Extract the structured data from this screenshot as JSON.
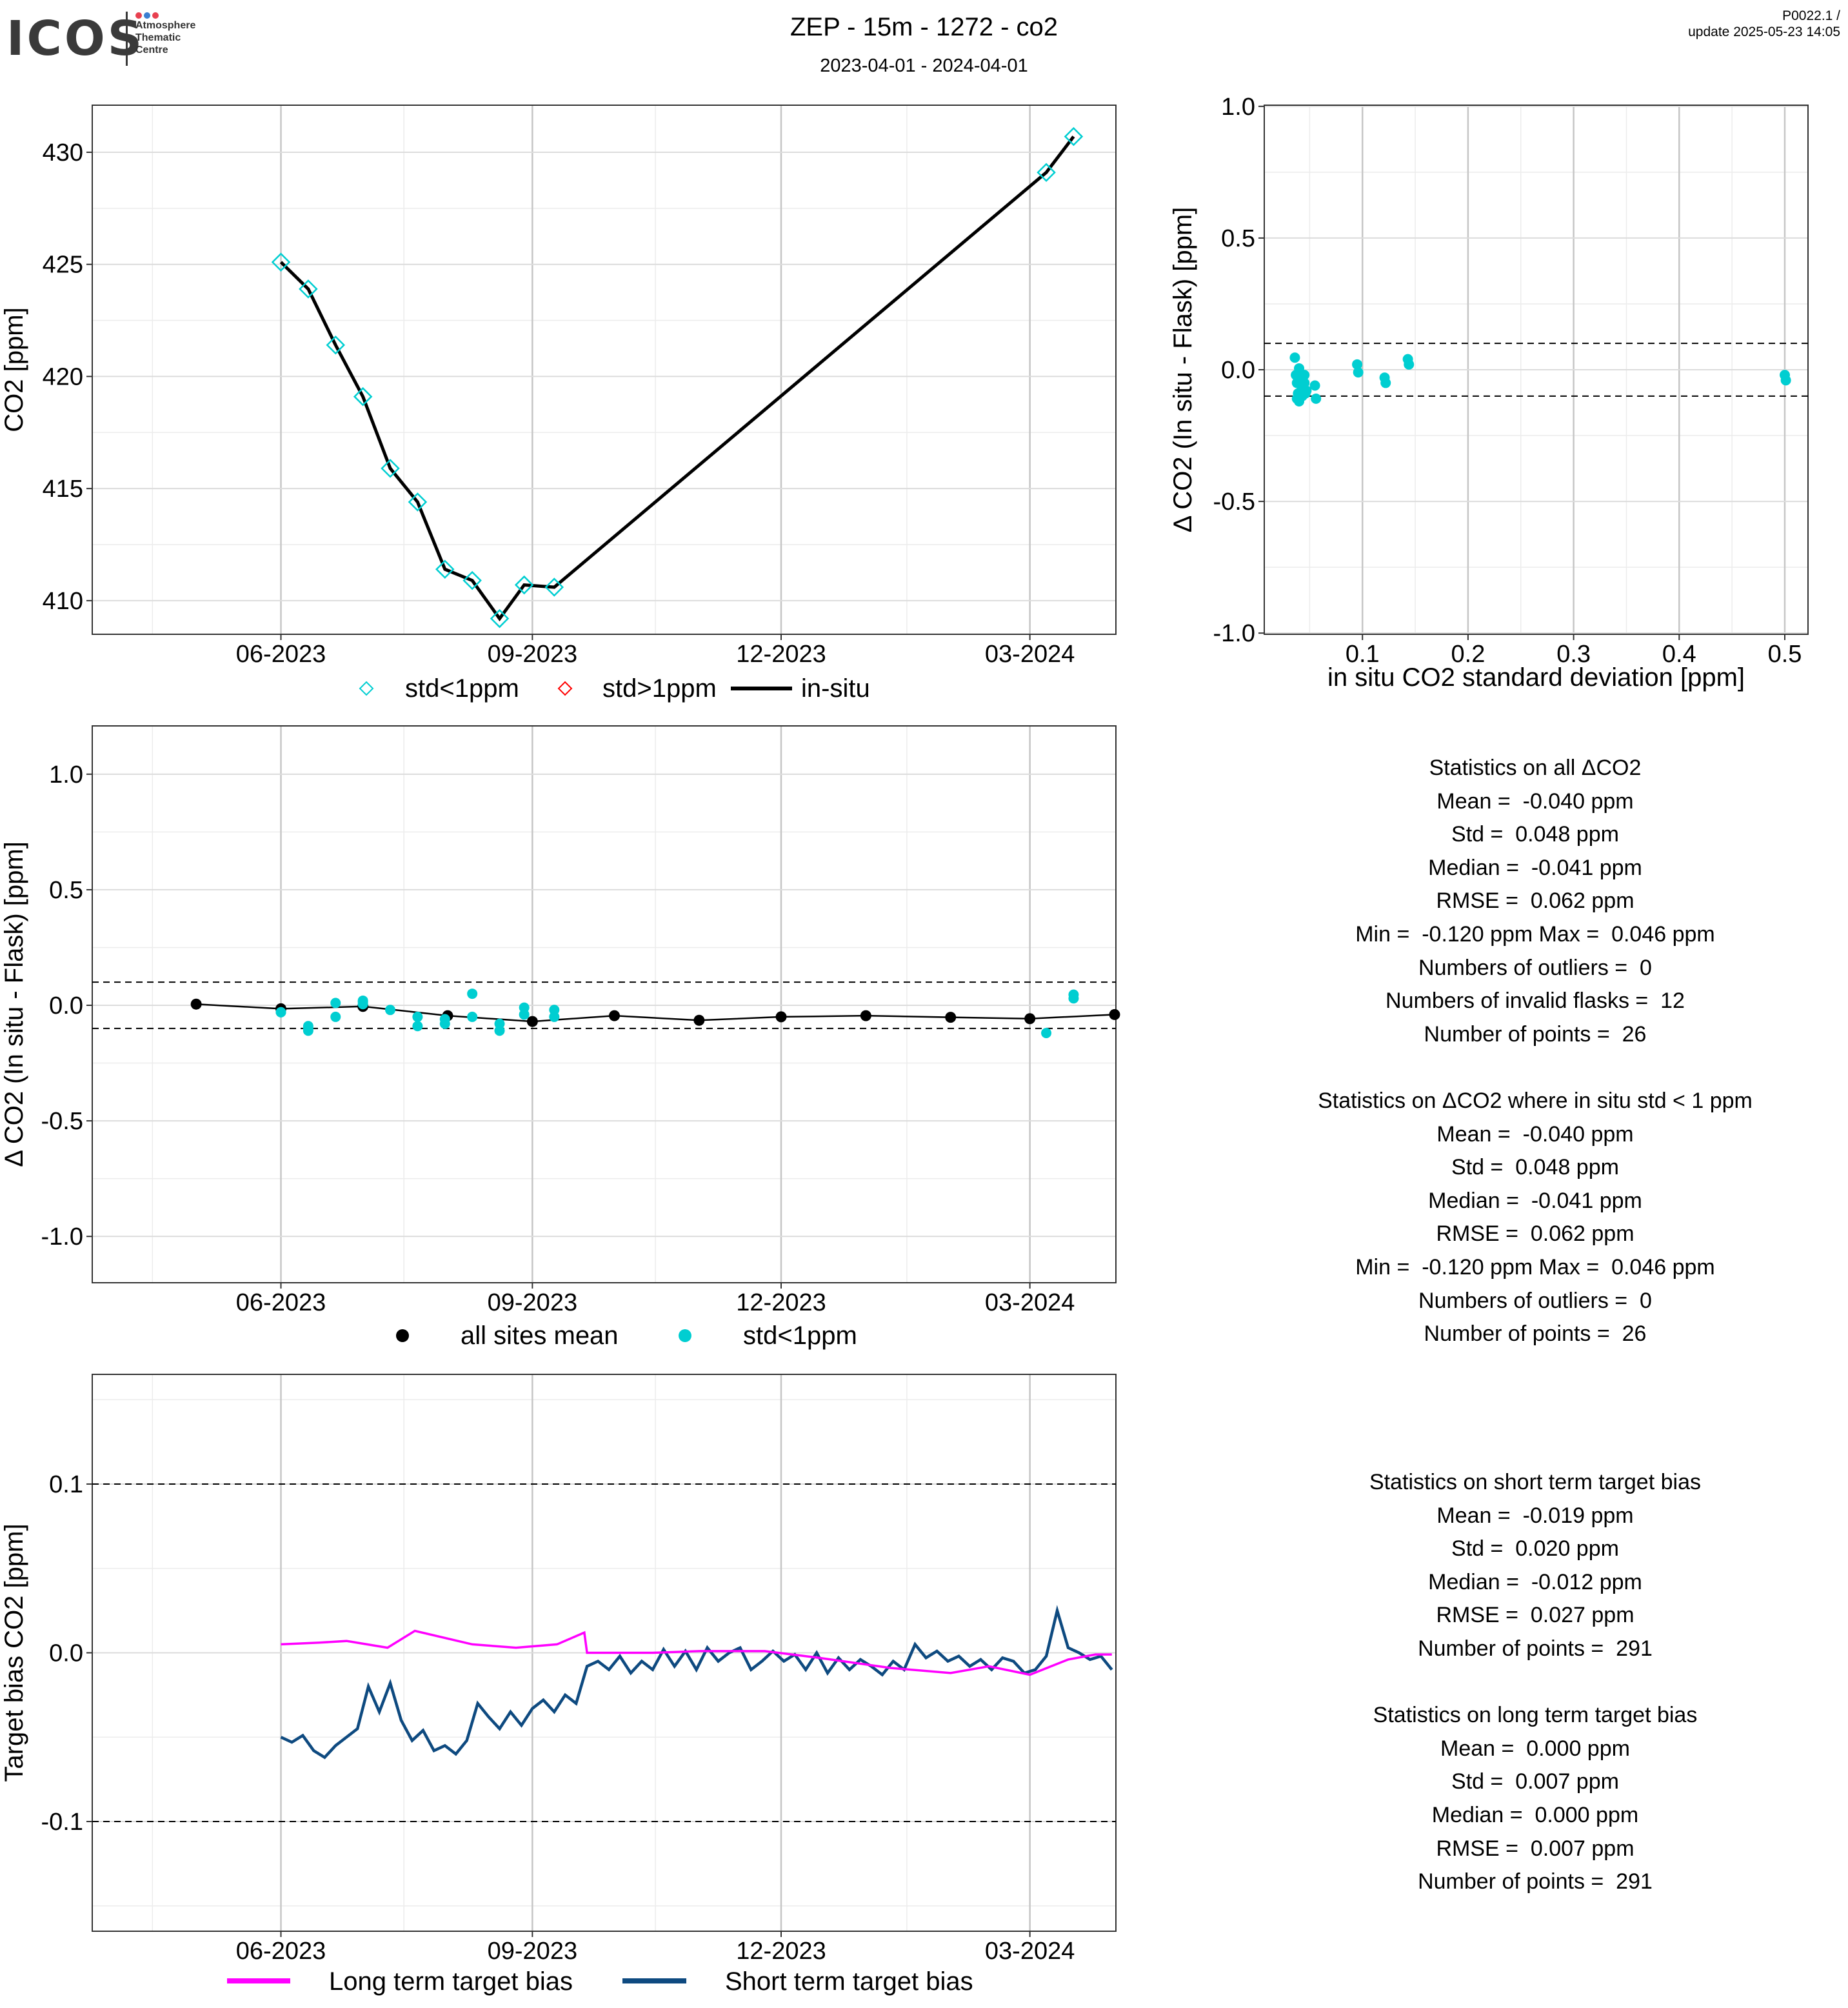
{
  "header": {
    "logo_text": "ICOS",
    "logo_subtext": [
      "Atmosphere",
      "Thematic",
      "Centre"
    ],
    "title": "ZEP - 15m - 1272 - co2",
    "subtitle": "2023-04-01 - 2024-04-01",
    "version": "P0022.1 /",
    "update": "update  2025-05-23 14:05"
  },
  "colors": {
    "std_lt_1": "#00CED1",
    "std_gt_1": "#FF0000",
    "insitu": "#000000",
    "long_term": "#FF00FF",
    "short_term": "#0E4A80",
    "logo_dots": [
      "#E8404F",
      "#3B7FD1",
      "#E8404F"
    ]
  },
  "chart_data": [
    {
      "id": "co2_timeseries",
      "type": "line",
      "ylabel": "CO2 [ppm]",
      "x_ticks": [
        "2023-06-01",
        "2023-09-01",
        "2023-12-01",
        "2024-03-01"
      ],
      "x_tick_labels": [
        "06-2023",
        "09-2023",
        "12-2023",
        "03-2024"
      ],
      "y_ticks": [
        410,
        415,
        420,
        425,
        430
      ],
      "ylim": [
        408.5,
        432.1
      ],
      "xlim": [
        "2023-04-01",
        "2024-04-01"
      ],
      "legend": [
        "std<1ppm",
        "std>1ppm",
        "in-situ"
      ],
      "series": [
        {
          "name": "in-situ",
          "x": [
            "2023-06-01",
            "2023-06-11",
            "2023-06-21",
            "2023-07-01",
            "2023-07-11",
            "2023-07-21",
            "2023-07-31",
            "2023-08-10",
            "2023-08-20",
            "2023-08-29",
            "2023-09-09",
            "2024-03-07",
            "2024-03-17"
          ],
          "y": [
            425.1,
            423.9,
            421.4,
            419.1,
            415.9,
            414.4,
            411.4,
            410.9,
            409.2,
            410.7,
            410.6,
            429.1,
            430.7
          ]
        },
        {
          "name": "std<1ppm",
          "x": [
            "2023-06-01",
            "2023-06-11",
            "2023-06-21",
            "2023-07-01",
            "2023-07-11",
            "2023-07-21",
            "2023-07-31",
            "2023-08-10",
            "2023-08-20",
            "2023-08-29",
            "2023-09-09",
            "2024-03-07",
            "2024-03-17"
          ],
          "y": [
            425.1,
            423.9,
            421.4,
            419.1,
            415.9,
            414.4,
            411.4,
            410.9,
            409.2,
            410.7,
            410.6,
            429.1,
            430.7
          ]
        },
        {
          "name": "std>1ppm",
          "x": [],
          "y": []
        }
      ]
    },
    {
      "id": "delta_vs_std",
      "type": "scatter",
      "xlabel": "in situ CO2 standard deviation [ppm]",
      "ylabel": "Δ CO2 (In situ - Flask) [ppm]",
      "x_ticks": [
        0.1,
        0.2,
        0.3,
        0.4,
        0.5
      ],
      "y_ticks": [
        -1.0,
        -0.5,
        0.0,
        0.5,
        1.0
      ],
      "y_tick_labels": [
        "-1.0",
        "-0.5",
        "0.0",
        "0.5",
        "1.0"
      ],
      "xlim": [
        0.007,
        0.522
      ],
      "ylim": [
        -1.1,
        1.1
      ],
      "hlines": [
        0.1,
        -0.1
      ],
      "x": [
        0.036,
        0.037,
        0.038,
        0.039,
        0.04,
        0.04,
        0.041,
        0.042,
        0.043,
        0.043,
        0.044,
        0.045,
        0.046,
        0.047,
        0.055,
        0.056,
        0.095,
        0.096,
        0.121,
        0.122,
        0.143,
        0.144,
        0.5,
        0.501,
        0.038,
        0.045
      ],
      "y": [
        0.046,
        -0.02,
        -0.05,
        -0.09,
        -0.12,
        0.005,
        -0.03,
        -0.06,
        -0.1,
        -0.04,
        -0.07,
        -0.05,
        -0.09,
        -0.08,
        -0.06,
        -0.11,
        0.02,
        -0.01,
        -0.03,
        -0.05,
        0.04,
        0.02,
        -0.02,
        -0.04,
        -0.11,
        -0.02
      ]
    },
    {
      "id": "delta_timeseries",
      "type": "scatter",
      "ylabel": "Δ CO2 (In situ - Flask) [ppm]",
      "x_ticks": [
        "2023-06-01",
        "2023-09-01",
        "2023-12-01",
        "2024-03-01"
      ],
      "x_tick_labels": [
        "06-2023",
        "09-2023",
        "12-2023",
        "03-2024"
      ],
      "y_ticks": [
        -1.0,
        -0.5,
        0.0,
        0.5,
        1.0
      ],
      "y_tick_labels": [
        "-1.0",
        "-0.5",
        "0.0",
        "0.5",
        "1.0"
      ],
      "xlim": [
        "2023-04-01",
        "2024-04-01"
      ],
      "ylim": [
        -1.1,
        1.1
      ],
      "hlines": [
        0.1,
        -0.1
      ],
      "legend": [
        "all sites mean",
        "std<1ppm"
      ],
      "series": [
        {
          "name": "all sites mean",
          "x": [
            "2023-05-01",
            "2023-06-01",
            "2023-07-01",
            "2023-08-01",
            "2023-09-01",
            "2023-10-01",
            "2023-11-01",
            "2023-12-01",
            "2024-01-01",
            "2024-02-01",
            "2024-03-01",
            "2024-04-01"
          ],
          "y": [
            0.005,
            -0.015,
            -0.005,
            -0.045,
            -0.07,
            -0.045,
            -0.065,
            -0.05,
            -0.045,
            -0.052,
            -0.058,
            -0.04
          ]
        },
        {
          "name": "std<1ppm",
          "x": [
            "2023-06-01",
            "2023-06-11",
            "2023-06-11",
            "2023-06-11",
            "2023-06-21",
            "2023-06-21",
            "2023-07-01",
            "2023-07-01",
            "2023-07-01",
            "2023-07-11",
            "2023-07-21",
            "2023-07-21",
            "2023-07-31",
            "2023-07-31",
            "2023-08-10",
            "2023-08-10",
            "2023-08-20",
            "2023-08-20",
            "2023-08-29",
            "2023-08-29",
            "2023-09-09",
            "2023-09-09",
            "2024-03-07",
            "2024-03-17",
            "2024-03-17",
            "2023-06-01"
          ],
          "y": [
            -0.03,
            -0.09,
            -0.11,
            -0.1,
            0.01,
            -0.05,
            0.02,
            0.005,
            0.015,
            -0.02,
            -0.05,
            -0.09,
            -0.06,
            -0.08,
            0.05,
            -0.05,
            -0.08,
            -0.11,
            -0.01,
            -0.04,
            -0.02,
            -0.05,
            -0.12,
            0.03,
            0.046,
            -0.03
          ]
        }
      ]
    },
    {
      "id": "target_bias",
      "type": "line",
      "ylabel": "Target bias CO2 [ppm]",
      "x_ticks": [
        "2023-06-01",
        "2023-09-01",
        "2023-12-01",
        "2024-03-01"
      ],
      "x_tick_labels": [
        "06-2023",
        "09-2023",
        "12-2023",
        "03-2024"
      ],
      "y_ticks": [
        -0.1,
        0.0,
        0.1
      ],
      "y_tick_labels": [
        "-0.1",
        "0.0",
        "0.1"
      ],
      "xlim": [
        "2023-04-01",
        "2024-04-01"
      ],
      "ylim": [
        -0.165,
        0.165
      ],
      "hlines": [
        0.1,
        -0.1
      ],
      "legend": [
        "Long term target bias",
        "Short term target bias"
      ],
      "series": [
        {
          "name": "Long term target bias",
          "x": [
            "2023-06-01",
            "2023-06-15",
            "2023-06-25",
            "2023-07-10",
            "2023-07-20",
            "2023-08-10",
            "2023-08-26",
            "2023-09-10",
            "2023-09-20",
            "2023-09-21",
            "2023-10-15",
            "2023-11-01",
            "2023-11-25",
            "2023-12-15",
            "2024-01-10",
            "2024-02-01",
            "2024-02-15",
            "2024-03-01",
            "2024-03-15",
            "2024-03-25",
            "2024-03-31"
          ],
          "y": [
            0.005,
            0.006,
            0.007,
            0.003,
            0.013,
            0.005,
            0.003,
            0.005,
            0.012,
            0.0,
            0.0,
            0.001,
            0.001,
            -0.003,
            -0.009,
            -0.012,
            -0.008,
            -0.013,
            -0.004,
            -0.001,
            -0.001
          ]
        },
        {
          "name": "Short term target bias",
          "x": [
            "2023-06-01",
            "2023-06-05",
            "2023-06-09",
            "2023-06-13",
            "2023-06-17",
            "2023-06-21",
            "2023-06-25",
            "2023-06-29",
            "2023-07-03",
            "2023-07-07",
            "2023-07-11",
            "2023-07-15",
            "2023-07-19",
            "2023-07-23",
            "2023-07-27",
            "2023-07-31",
            "2023-08-04",
            "2023-08-08",
            "2023-08-12",
            "2023-08-16",
            "2023-08-20",
            "2023-08-24",
            "2023-08-28",
            "2023-09-01",
            "2023-09-05",
            "2023-09-09",
            "2023-09-13",
            "2023-09-17",
            "2023-09-21",
            "2023-09-25",
            "2023-09-29",
            "2023-10-03",
            "2023-10-07",
            "2023-10-11",
            "2023-10-15",
            "2023-10-19",
            "2023-10-23",
            "2023-10-27",
            "2023-10-31",
            "2023-11-04",
            "2023-11-08",
            "2023-11-12",
            "2023-11-16",
            "2023-11-20",
            "2023-11-24",
            "2023-11-28",
            "2023-12-02",
            "2023-12-06",
            "2023-12-10",
            "2023-12-14",
            "2023-12-18",
            "2023-12-22",
            "2023-12-26",
            "2023-12-30",
            "2024-01-03",
            "2024-01-07",
            "2024-01-11",
            "2024-01-15",
            "2024-01-19",
            "2024-01-23",
            "2024-01-27",
            "2024-01-31",
            "2024-02-04",
            "2024-02-08",
            "2024-02-12",
            "2024-02-16",
            "2024-02-20",
            "2024-02-24",
            "2024-02-28",
            "2024-03-03",
            "2024-03-07",
            "2024-03-11",
            "2024-03-15",
            "2024-03-19",
            "2024-03-23",
            "2024-03-27",
            "2024-03-31"
          ],
          "y": [
            -0.05,
            -0.053,
            -0.049,
            -0.058,
            -0.062,
            -0.055,
            -0.05,
            -0.045,
            -0.02,
            -0.035,
            -0.018,
            -0.04,
            -0.052,
            -0.046,
            -0.058,
            -0.055,
            -0.06,
            -0.052,
            -0.03,
            -0.038,
            -0.045,
            -0.035,
            -0.043,
            -0.033,
            -0.028,
            -0.035,
            -0.025,
            -0.03,
            -0.008,
            -0.005,
            -0.01,
            -0.002,
            -0.012,
            -0.005,
            -0.01,
            0.002,
            -0.008,
            0.001,
            -0.01,
            0.003,
            -0.005,
            0.0,
            0.003,
            -0.01,
            -0.005,
            0.001,
            -0.005,
            -0.001,
            -0.01,
            0.0,
            -0.012,
            -0.003,
            -0.01,
            -0.004,
            -0.008,
            -0.013,
            -0.005,
            -0.01,
            0.005,
            -0.003,
            0.001,
            -0.005,
            -0.002,
            -0.008,
            -0.004,
            -0.01,
            -0.003,
            -0.005,
            -0.012,
            -0.01,
            -0.002,
            0.025,
            0.003,
            0.0,
            -0.004,
            -0.002,
            -0.01
          ]
        }
      ]
    }
  ],
  "stats_all": [
    "Statistics on all ΔCO2",
    "Mean =  -0.040 ppm",
    "Std =  0.048 ppm",
    "Median =  -0.041 ppm",
    "RMSE =  0.062 ppm",
    "Min =  -0.120 ppm Max =  0.046 ppm",
    "Numbers of outliers =  0",
    "Numbers of invalid flasks =  12",
    "Number of points =  26",
    "",
    "Statistics on ΔCO2 where in situ std < 1 ppm",
    "Mean =  -0.040 ppm",
    "Std =  0.048 ppm",
    "Median =  -0.041 ppm",
    "RMSE =  0.062 ppm",
    "Min =  -0.120 ppm Max =  0.046 ppm",
    "Numbers of outliers =  0",
    "Number of points =  26"
  ],
  "stats_target": [
    "Statistics on short term target bias",
    "Mean =  -0.019 ppm",
    "Std =  0.020 ppm",
    "Median =  -0.012 ppm",
    "RMSE =  0.027 ppm",
    "Number of points =  291",
    "",
    "Statistics on long term target bias",
    "Mean =  0.000 ppm",
    "Std =  0.007 ppm",
    "Median =  0.000 ppm",
    "RMSE =  0.007 ppm",
    "Number of points =  291"
  ]
}
